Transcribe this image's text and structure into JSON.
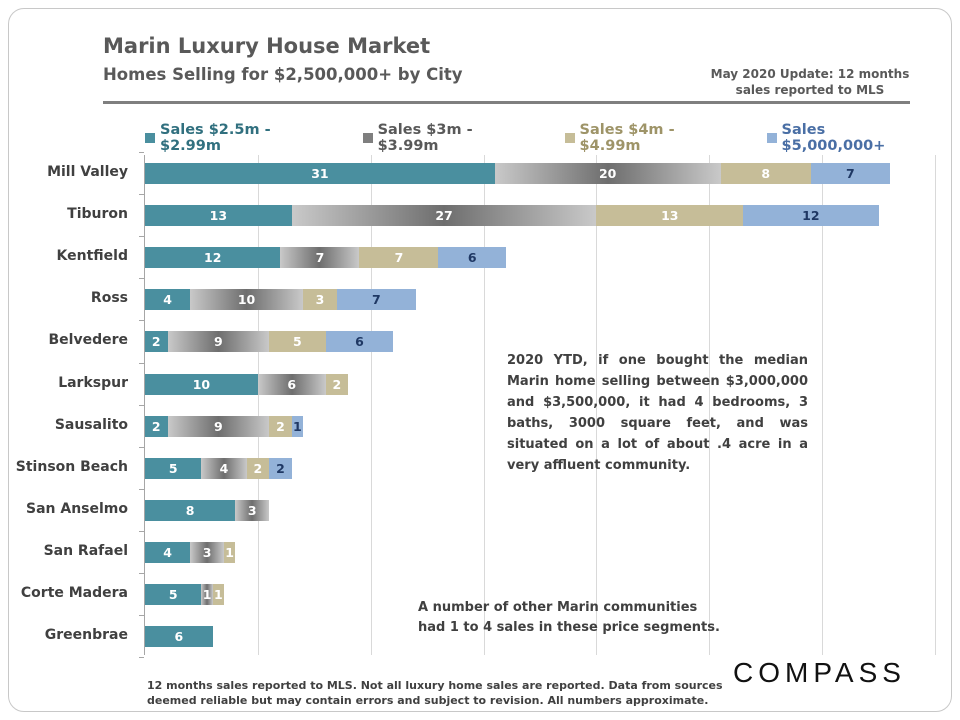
{
  "header": {
    "title": "Marin Luxury House Market",
    "subtitle": "Homes Selling for $2,500,000+ by City",
    "update_line1": "May 2020  Update: 12 months",
    "update_line2": "sales reported to MLS"
  },
  "colors": {
    "s1": "#4a8f9f",
    "s2": "#8a8a8a",
    "s3": "#c6bd98",
    "s4": "#93b2d8",
    "s4_label": "#1f3864",
    "s1_legend": "#31707f",
    "s3_legend": "#9e9468",
    "s4_legend": "#4a6fa5"
  },
  "chart_data": {
    "type": "bar",
    "orientation": "horizontal",
    "stacked": true,
    "title": "Marin Luxury House Market",
    "subtitle": "Homes Selling for $2,500,000+ by City",
    "xlim": [
      0,
      70
    ],
    "grid": true,
    "legend_position": "top",
    "categories": [
      "Mill Valley",
      "Tiburon",
      "Kentfield",
      "Ross",
      "Belvedere",
      "Larkspur",
      "Sausalito",
      "Stinson Beach",
      "San Anselmo",
      "San Rafael",
      "Corte Madera",
      "Greenbrae"
    ],
    "series": [
      {
        "name": "Sales $2.5m - $2.99m",
        "values": [
          31,
          13,
          12,
          4,
          2,
          10,
          2,
          5,
          8,
          4,
          5,
          6
        ]
      },
      {
        "name": "Sales $3m - $3.99m",
        "values": [
          20,
          27,
          7,
          10,
          9,
          6,
          9,
          4,
          3,
          3,
          1,
          0
        ]
      },
      {
        "name": "Sales $4m - $4.99m",
        "values": [
          8,
          13,
          7,
          3,
          5,
          2,
          2,
          2,
          0,
          1,
          1,
          0
        ]
      },
      {
        "name": "Sales $5,000,000+",
        "values": [
          7,
          12,
          6,
          7,
          6,
          0,
          1,
          2,
          0,
          0,
          0,
          0
        ]
      }
    ]
  },
  "annotations": {
    "note1": "2020 YTD, if one bought the median Marin home selling between $3,000,000 and $3,500,000, it had 4 bedrooms, 3 baths, 3000 square feet, and was situated on a lot of about .4 acre in a very affluent community.",
    "note2_line1": "A number of other Marin communities",
    "note2_line2": "had 1 to 4 sales in these price segments."
  },
  "footer": {
    "line1": "12 months sales reported to MLS. Not all luxury home sales are reported. Data from sources",
    "line2": "deemed reliable but may contain errors and subject to revision. All numbers approximate."
  },
  "logo": "COMPASS"
}
